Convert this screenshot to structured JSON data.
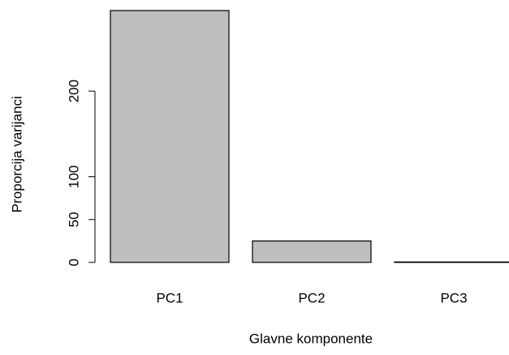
{
  "chart_data": {
    "type": "bar",
    "categories": [
      "PC1",
      "PC2",
      "PC3"
    ],
    "values": [
      294,
      25,
      0.5
    ],
    "color": "#bebebe",
    "xlabel": "Glavne komponente",
    "ylabel": "Proporcija varijanci",
    "ylim": [
      0,
      294
    ],
    "yticks": [
      0,
      50,
      100,
      200
    ],
    "grid": false
  }
}
